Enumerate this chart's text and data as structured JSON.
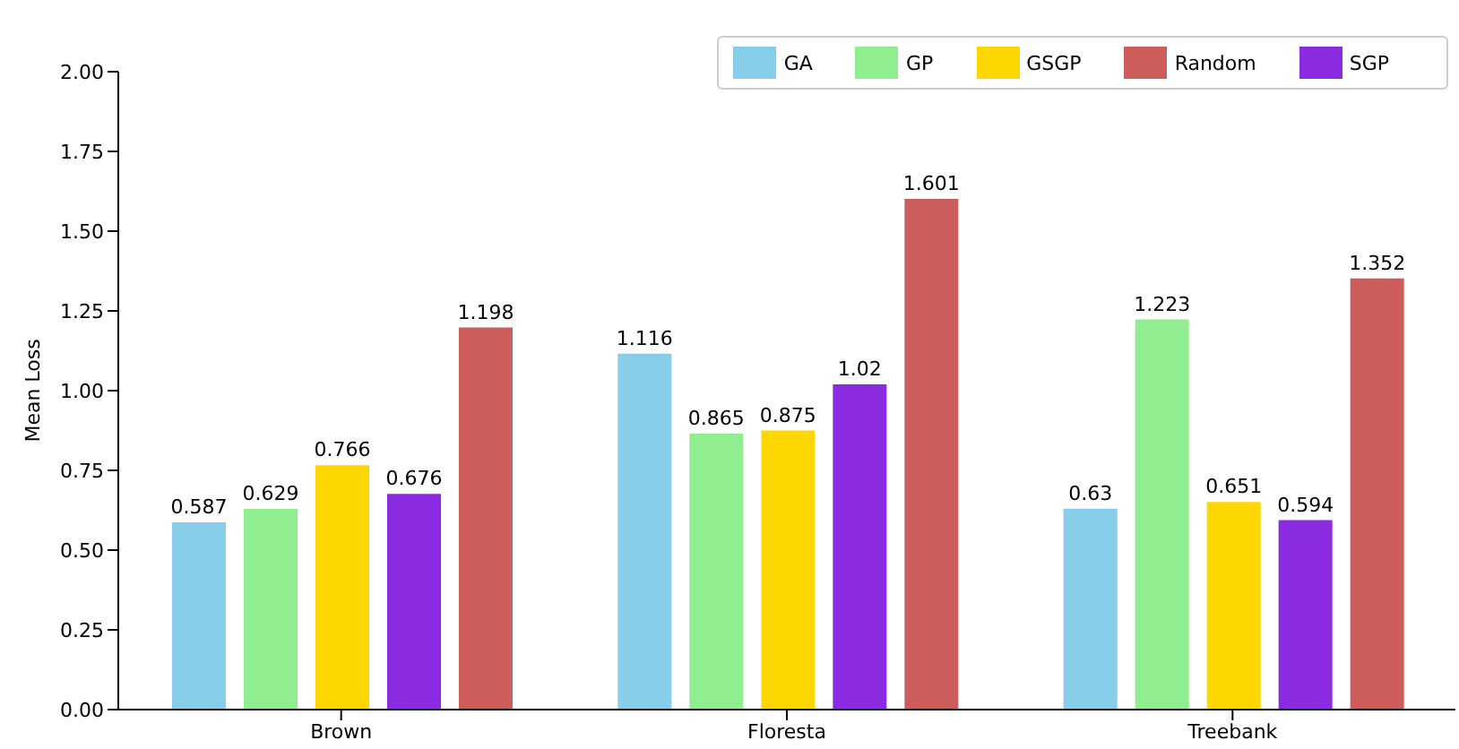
{
  "chart_data": {
    "type": "bar",
    "ylabel": "Mean Loss",
    "categories": [
      "Brown",
      "Floresta",
      "Treebank"
    ],
    "series": [
      {
        "name": "GA",
        "color": "#87ceeb",
        "values": [
          0.587,
          1.116,
          0.63
        ]
      },
      {
        "name": "GP",
        "color": "#90ee90",
        "values": [
          0.629,
          0.865,
          1.223
        ]
      },
      {
        "name": "GSGP",
        "color": "#ffd700",
        "values": [
          0.766,
          0.875,
          0.651
        ]
      },
      {
        "name": "SGP",
        "color": "#8a2be2",
        "values": [
          0.676,
          1.02,
          0.594
        ]
      },
      {
        "name": "Random",
        "color": "#cd5c5c",
        "values": [
          1.198,
          1.601,
          1.352
        ]
      }
    ],
    "ylim": [
      0,
      2
    ],
    "yticks": [
      {
        "value": 0,
        "label": "0.00"
      },
      {
        "value": 0.25,
        "label": "0.25"
      },
      {
        "value": 0.5,
        "label": "0.50"
      },
      {
        "value": 0.75,
        "label": "0.75"
      },
      {
        "value": 1,
        "label": "1.00"
      },
      {
        "value": 1.25,
        "label": "1.25"
      },
      {
        "value": 1.5,
        "label": "1.50"
      },
      {
        "value": 1.75,
        "label": "1.75"
      },
      {
        "value": 2,
        "label": "2.00"
      }
    ],
    "grid": false,
    "legend": "top right",
    "data_labels": true
  }
}
